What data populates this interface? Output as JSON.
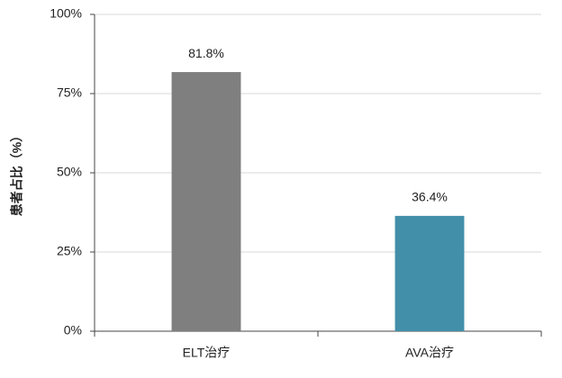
{
  "chart_data": {
    "type": "bar",
    "y_label": "患者占比（%）",
    "categories": [
      "ELT治疗",
      "AVA治疗"
    ],
    "values": [
      81.8,
      36.4
    ],
    "value_labels": [
      "81.8%",
      "36.4%"
    ],
    "colors": [
      "#7f7f7f",
      "#428fa9"
    ],
    "ylim": [
      0,
      100
    ],
    "yticks": [
      {
        "value": 0,
        "label": "0%"
      },
      {
        "value": 25,
        "label": "25%"
      },
      {
        "value": 50,
        "label": "50%"
      },
      {
        "value": 75,
        "label": "75%"
      },
      {
        "value": 100,
        "label": "100%"
      }
    ],
    "grid": true
  }
}
